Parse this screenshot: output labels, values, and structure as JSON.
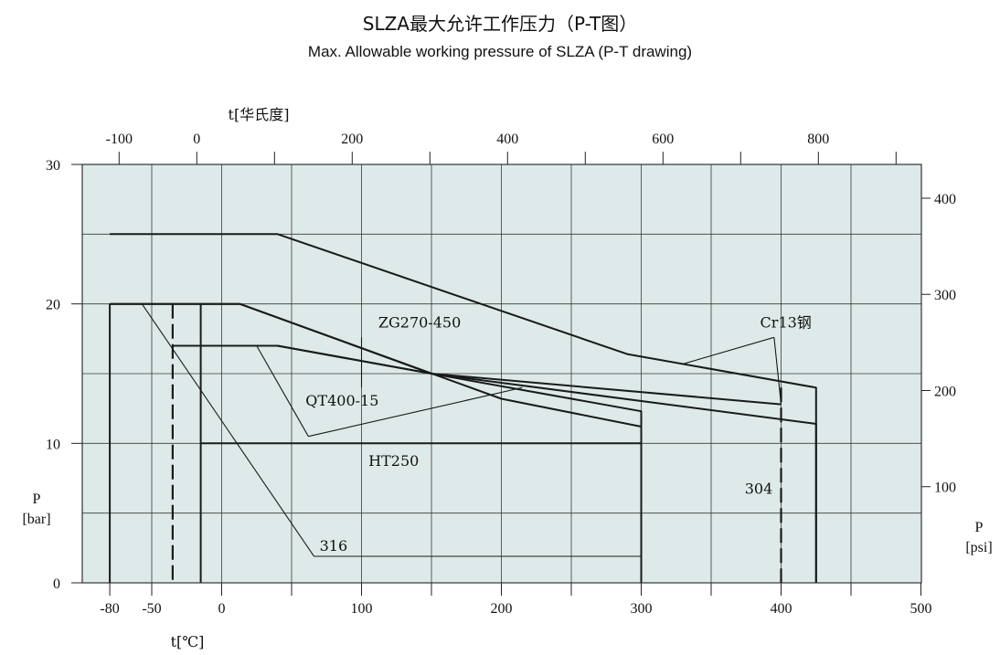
{
  "title": "SLZA最大允许工作压力（P-T图）",
  "subtitle": "Max. Allowable working pressure of SLZA (P-T drawing)",
  "chart_data": {
    "type": "line",
    "x_axis": {
      "label": "t[℃]",
      "ticks": [
        -80,
        -50,
        0,
        100,
        200,
        300,
        400,
        500
      ],
      "xlim": [
        -90,
        500
      ]
    },
    "x2_axis": {
      "label": "t[华氏度]",
      "ticks": [
        -100,
        0,
        200,
        400,
        600,
        800
      ]
    },
    "y_axis": {
      "label": "P",
      "unit": "[bar]",
      "ticks": [
        0,
        10,
        20,
        30
      ],
      "ylim": [
        0,
        30
      ]
    },
    "y2_axis": {
      "label": "P",
      "unit": "[psi]",
      "ticks": [
        100,
        200,
        300,
        400
      ]
    },
    "grid": true,
    "plot_bg": "#ddeae9",
    "line_color": "#1a1a1a",
    "series": [
      {
        "name": "Cr13钢",
        "dashed": false,
        "points": [
          [
            -80,
            25
          ],
          [
            40,
            25
          ],
          [
            290,
            16.4
          ],
          [
            425,
            14
          ],
          [
            425,
            0
          ]
        ]
      },
      {
        "name": "ZG270-450",
        "dashed": false,
        "points": [
          [
            -80,
            20
          ],
          [
            -80,
            0
          ],
          [
            null,
            null
          ],
          [
            -80,
            20
          ],
          [
            13,
            20
          ],
          [
            200,
            13.2
          ],
          [
            300,
            11.2
          ],
          [
            300,
            0
          ]
        ]
      },
      {
        "name": "QT400-15",
        "dashed": false,
        "points": [
          [
            -35,
            17
          ],
          [
            40,
            17
          ],
          [
            150,
            15
          ],
          [
            300,
            12.3
          ],
          [
            300,
            0
          ]
        ]
      },
      {
        "name": "HT250",
        "dashed": false,
        "points": [
          [
            -15,
            20
          ],
          [
            -15,
            0
          ],
          [
            null,
            null
          ],
          [
            -15,
            10
          ],
          [
            300,
            10
          ]
        ]
      },
      {
        "name": "304",
        "dashed": false,
        "points": [
          [
            -80,
            20
          ],
          [
            13,
            20
          ],
          [
            150,
            15
          ],
          [
            425,
            11.4
          ],
          [
            425,
            0
          ]
        ]
      },
      {
        "name": "316",
        "dashed": false,
        "points": [
          [
            -35,
            17
          ],
          [
            40,
            17
          ],
          [
            150,
            15
          ],
          [
            400,
            12.8
          ]
        ]
      },
      {
        "name": "",
        "dashed": true,
        "points": [
          [
            -35,
            20
          ],
          [
            -35,
            0
          ]
        ]
      },
      {
        "name": "",
        "dashed": true,
        "points": [
          [
            400,
            14
          ],
          [
            400,
            0
          ]
        ]
      }
    ],
    "annotations": [
      {
        "text": "ZG270-450",
        "anchor": [
          112,
          18.3
        ],
        "lines": [
          [
            [
              100,
              17.6
            ],
            [
              100,
              14
            ]
          ]
        ]
      },
      {
        "text": "Cr13钢",
        "anchor": [
          385,
          18.3
        ],
        "lines": [
          [
            [
              395,
              17.6
            ],
            [
              330,
              15.7
            ]
          ],
          [
            [
              395,
              17.6
            ],
            [
              400,
              12.8
            ]
          ]
        ]
      },
      {
        "text": "QT400-15",
        "anchor": [
          60,
          12.7
        ],
        "lines": [
          [
            [
              25,
              17
            ],
            [
              62,
              10.5
            ]
          ],
          [
            [
              62,
              10.5
            ],
            [
              215,
              14
            ]
          ]
        ]
      },
      {
        "text": "HT250",
        "anchor": [
          105,
          8.4
        ],
        "lines": []
      },
      {
        "text": "304",
        "anchor": [
          374,
          6.4
        ],
        "lines": []
      },
      {
        "text": "316",
        "anchor": [
          70,
          2.3
        ],
        "lines": [
          [
            [
              -57,
              20
            ],
            [
              66,
              1.9
            ]
          ],
          [
            [
              66,
              1.9
            ],
            [
              300,
              1.9
            ]
          ]
        ]
      }
    ]
  }
}
